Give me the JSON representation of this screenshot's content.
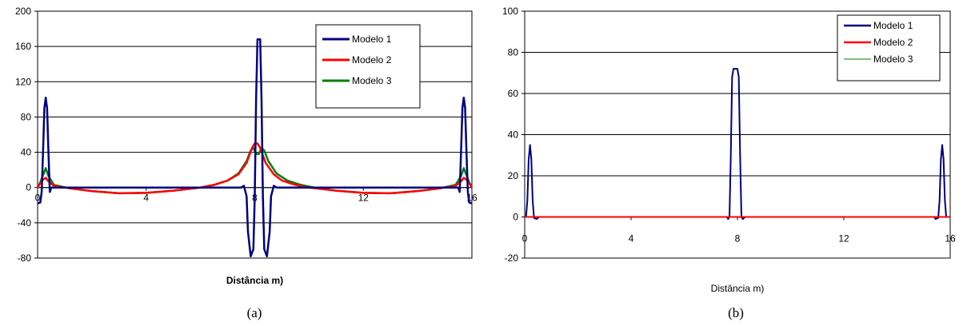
{
  "chart_data": [
    {
      "type": "line",
      "caption": "(a)",
      "xlabel": "Distância m)",
      "ylabel": "",
      "xlim": [
        0,
        16
      ],
      "ylim": [
        -80,
        200
      ],
      "x_ticks": [
        0,
        4,
        8,
        12,
        16
      ],
      "y_ticks": [
        -80,
        -40,
        0,
        40,
        80,
        120,
        160,
        200
      ],
      "grid": true,
      "legend_position": "top-right",
      "series": [
        {
          "name": "Modelo 1",
          "color": "#000080",
          "points": [
            [
              0,
              -18
            ],
            [
              0.1,
              -17
            ],
            [
              0.15,
              -5
            ],
            [
              0.2,
              40
            ],
            [
              0.25,
              90
            ],
            [
              0.3,
              102
            ],
            [
              0.35,
              90
            ],
            [
              0.4,
              40
            ],
            [
              0.45,
              -5
            ],
            [
              0.5,
              0
            ],
            [
              1,
              0
            ],
            [
              7.5,
              0
            ],
            [
              7.6,
              2
            ],
            [
              7.7,
              -10
            ],
            [
              7.75,
              -50
            ],
            [
              7.85,
              -78
            ],
            [
              7.95,
              -70
            ],
            [
              8.0,
              -10
            ],
            [
              8.05,
              100
            ],
            [
              8.1,
              168
            ],
            [
              8.2,
              168
            ],
            [
              8.25,
              100
            ],
            [
              8.3,
              -10
            ],
            [
              8.35,
              -70
            ],
            [
              8.45,
              -78
            ],
            [
              8.55,
              -50
            ],
            [
              8.6,
              -10
            ],
            [
              8.7,
              2
            ],
            [
              8.8,
              0
            ],
            [
              15.5,
              0
            ],
            [
              15.55,
              -5
            ],
            [
              15.6,
              40
            ],
            [
              15.65,
              90
            ],
            [
              15.7,
              102
            ],
            [
              15.75,
              90
            ],
            [
              15.8,
              40
            ],
            [
              15.85,
              -5
            ],
            [
              15.9,
              -17
            ],
            [
              16,
              -18
            ]
          ]
        },
        {
          "name": "Modelo 2",
          "color": "#ff0000",
          "points": [
            [
              0,
              0
            ],
            [
              0.1,
              5
            ],
            [
              0.2,
              9
            ],
            [
              0.3,
              11
            ],
            [
              0.4,
              7
            ],
            [
              0.6,
              2
            ],
            [
              1.2,
              -1
            ],
            [
              2,
              -4
            ],
            [
              3,
              -6.5
            ],
            [
              4,
              -6
            ],
            [
              5,
              -3.5
            ],
            [
              6,
              0
            ],
            [
              6.5,
              3
            ],
            [
              7,
              8
            ],
            [
              7.4,
              15
            ],
            [
              7.7,
              28
            ],
            [
              7.9,
              45
            ],
            [
              8.0,
              50
            ],
            [
              8.1,
              50
            ],
            [
              8.2,
              45
            ],
            [
              8.4,
              28
            ],
            [
              8.7,
              15
            ],
            [
              9,
              8
            ],
            [
              9.5,
              3
            ],
            [
              10,
              0
            ],
            [
              11,
              -3.5
            ],
            [
              12,
              -6
            ],
            [
              13,
              -6.5
            ],
            [
              14,
              -4
            ],
            [
              14.8,
              -1
            ],
            [
              15.4,
              2
            ],
            [
              15.6,
              7
            ],
            [
              15.7,
              11
            ],
            [
              15.8,
              9
            ],
            [
              15.9,
              5
            ],
            [
              16,
              0
            ]
          ]
        },
        {
          "name": "Modelo 3",
          "color": "#008000",
          "points": [
            [
              0,
              0
            ],
            [
              0.1,
              6
            ],
            [
              0.2,
              14
            ],
            [
              0.3,
              22
            ],
            [
              0.4,
              13
            ],
            [
              0.6,
              3
            ],
            [
              1.2,
              -1
            ],
            [
              2,
              -4
            ],
            [
              3,
              -6.5
            ],
            [
              4,
              -6
            ],
            [
              5,
              -3.5
            ],
            [
              6,
              0
            ],
            [
              6.5,
              3
            ],
            [
              7,
              8
            ],
            [
              7.4,
              16
            ],
            [
              7.7,
              30
            ],
            [
              7.85,
              42
            ],
            [
              7.95,
              45
            ],
            [
              8.05,
              38
            ],
            [
              8.15,
              38
            ],
            [
              8.25,
              45
            ],
            [
              8.35,
              42
            ],
            [
              8.5,
              30
            ],
            [
              8.8,
              16
            ],
            [
              9.2,
              8
            ],
            [
              9.7,
              3
            ],
            [
              10.2,
              0
            ],
            [
              11,
              -3.5
            ],
            [
              12,
              -6
            ],
            [
              13,
              -6.5
            ],
            [
              14,
              -4
            ],
            [
              14.8,
              -1
            ],
            [
              15.4,
              3
            ],
            [
              15.6,
              13
            ],
            [
              15.7,
              22
            ],
            [
              15.8,
              14
            ],
            [
              15.9,
              6
            ],
            [
              16,
              0
            ]
          ]
        }
      ]
    },
    {
      "type": "line",
      "caption": "(b)",
      "xlabel": "Distância m)",
      "ylabel": "",
      "xlim": [
        0,
        16
      ],
      "ylim": [
        -20,
        100
      ],
      "x_ticks": [
        0,
        4,
        8,
        12,
        16
      ],
      "y_ticks": [
        -20,
        0,
        20,
        40,
        60,
        80,
        100
      ],
      "grid": true,
      "legend_position": "top-right",
      "series": [
        {
          "name": "Modelo 1",
          "color": "#000080",
          "points": [
            [
              0,
              0
            ],
            [
              0.05,
              0
            ],
            [
              0.1,
              8
            ],
            [
              0.15,
              28
            ],
            [
              0.2,
              35
            ],
            [
              0.25,
              28
            ],
            [
              0.3,
              8
            ],
            [
              0.35,
              -0.5
            ],
            [
              0.45,
              -1
            ],
            [
              0.55,
              0
            ],
            [
              7.6,
              0
            ],
            [
              7.65,
              -1
            ],
            [
              7.7,
              0
            ],
            [
              7.75,
              30
            ],
            [
              7.8,
              68
            ],
            [
              7.85,
              72
            ],
            [
              8.0,
              72
            ],
            [
              8.05,
              68
            ],
            [
              8.1,
              30
            ],
            [
              8.15,
              0
            ],
            [
              8.2,
              -1
            ],
            [
              8.3,
              0
            ],
            [
              15.4,
              0
            ],
            [
              15.45,
              -1
            ],
            [
              15.55,
              -0.5
            ],
            [
              15.6,
              8
            ],
            [
              15.65,
              28
            ],
            [
              15.7,
              35
            ],
            [
              15.75,
              28
            ],
            [
              15.8,
              8
            ],
            [
              15.85,
              0
            ],
            [
              16,
              0
            ]
          ]
        },
        {
          "name": "Modelo 2",
          "color": "#ff0000",
          "points": [
            [
              0,
              0
            ],
            [
              16,
              0
            ]
          ]
        },
        {
          "name": "Modelo 3",
          "color": "#008000",
          "points": [
            [
              0,
              0
            ],
            [
              16,
              0
            ]
          ]
        }
      ]
    }
  ]
}
